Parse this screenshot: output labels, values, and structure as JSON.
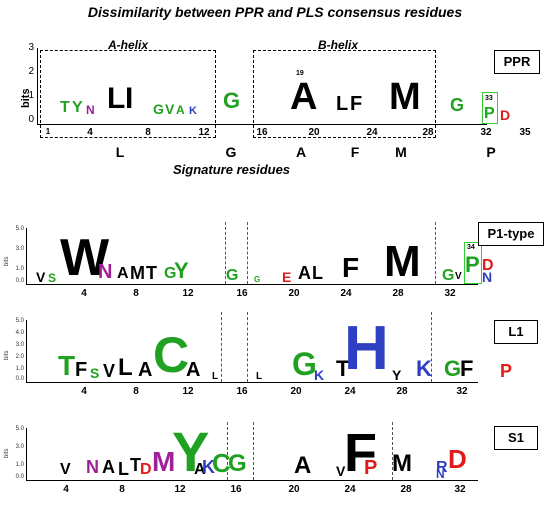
{
  "title": "Dissimilarity between PPR and PLS consensus residues",
  "top_panel": {
    "name": "PPR",
    "ylabel": "bits",
    "yticks": [
      "3",
      "2",
      "1",
      "0"
    ],
    "helix_a": "A-helix",
    "helix_b": "B-helix",
    "xticks": [
      "1",
      "4",
      "8",
      "12",
      "16",
      "20",
      "24",
      "28",
      "32",
      "35"
    ],
    "marker_19": "19",
    "marker_33": "33",
    "signature_residues": [
      "L",
      "G",
      "A",
      "F",
      "M",
      "P"
    ],
    "signature_caption": "Signature residues"
  },
  "panels": [
    {
      "name": "P1-type",
      "ylabel": "bits",
      "yticks": [
        "5.0",
        "4.5",
        "4.0",
        "3.5",
        "3.0",
        "2.5",
        "2.0",
        "1.5",
        "1.0",
        "0.5",
        "0.0"
      ],
      "xticks": [
        "4",
        "8",
        "12",
        "16",
        "20",
        "24",
        "28",
        "32"
      ],
      "marker": "34"
    },
    {
      "name": "L1",
      "ylabel": "bits",
      "yticks": [
        "5.0",
        "4.0",
        "3.0",
        "2.0",
        "1.0",
        "0.0"
      ],
      "xticks": [
        "4",
        "8",
        "12",
        "16",
        "20",
        "24",
        "28",
        "32"
      ]
    },
    {
      "name": "S1",
      "ylabel": "bits",
      "yticks": [
        "5.0",
        "4.5",
        "4.0",
        "3.5",
        "3.0",
        "2.5",
        "2.0",
        "1.5",
        "1.0",
        "0.5",
        "0.0"
      ],
      "xticks": [
        "4",
        "8",
        "12",
        "16",
        "20",
        "24",
        "28",
        "32"
      ]
    }
  ],
  "logo_letters": {
    "ppr": [
      "T",
      "Y",
      "N",
      "L",
      "I",
      "G",
      "V",
      "A",
      "K",
      "G",
      "A",
      "L",
      "F",
      "M",
      "G",
      "P",
      "D"
    ],
    "p1": [
      "V",
      "S",
      "W",
      "N",
      "A",
      "M",
      "T",
      "G",
      "Y",
      "G",
      "G",
      "E",
      "A",
      "L",
      "F",
      "M",
      "G",
      "V",
      "P",
      "D",
      "N"
    ],
    "l1": [
      "T",
      "F",
      "S",
      "V",
      "L",
      "A",
      "C",
      "A",
      "L",
      "L",
      "G",
      "K",
      "T",
      "H",
      "Y",
      "K",
      "G",
      "F",
      "P"
    ],
    "s1": [
      "V",
      "N",
      "A",
      "L",
      "T",
      "D",
      "M",
      "Y",
      "A",
      "K",
      "C",
      "G",
      "A",
      "V",
      "F",
      "P",
      "M",
      "R",
      "D",
      "N"
    ]
  },
  "colors": {
    "green": "#21a121",
    "blue": "#2f3fc4",
    "red": "#e01b1b",
    "purple": "#a0209a",
    "black": "#000000",
    "highlight": "#33cc33"
  }
}
